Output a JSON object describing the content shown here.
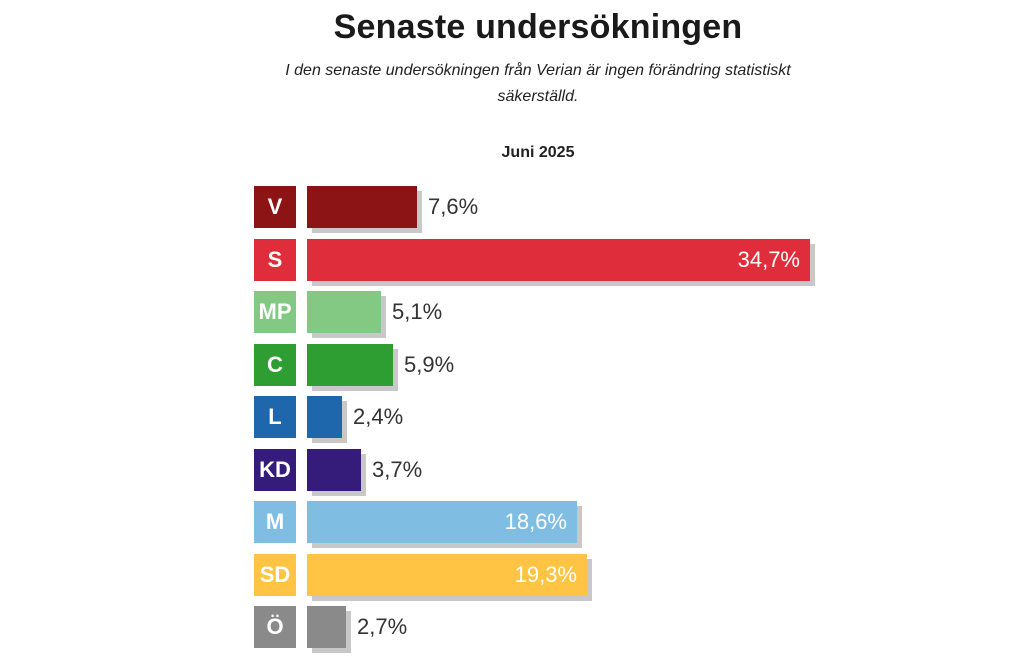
{
  "header": {
    "title": "Senaste undersökningen",
    "subtitle": "I den senaste undersökningen från Verian är ingen förändring statistiskt säkerställd."
  },
  "chart_data": {
    "type": "bar",
    "orientation": "horizontal",
    "title": "Senaste undersökningen",
    "subtitle": "I den senaste undersökningen från Verian är ingen förändring statistiskt säkerställd.",
    "period_label": "Juni 2025",
    "categories": [
      "V",
      "S",
      "MP",
      "C",
      "L",
      "KD",
      "M",
      "SD",
      "Ö"
    ],
    "values": [
      7.6,
      34.7,
      5.1,
      5.9,
      2.4,
      3.7,
      18.6,
      19.3,
      2.7
    ],
    "value_labels": [
      "7,6%",
      "34,7%",
      "5,1%",
      "5,9%",
      "2,4%",
      "3,7%",
      "18,6%",
      "19,3%",
      "2,7%"
    ],
    "colors": [
      "#8c1414",
      "#e02d3c",
      "#83c883",
      "#2e9e33",
      "#1f67ac",
      "#351b7a",
      "#80bde2",
      "#ffc444",
      "#8a8a8a"
    ],
    "unit": "%",
    "xlim": [
      0,
      34.7
    ],
    "grid": false,
    "legend": "none"
  }
}
